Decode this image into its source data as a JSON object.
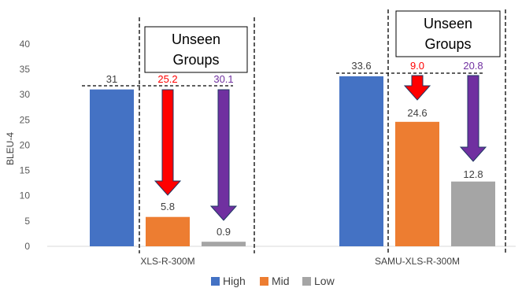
{
  "chart_data": {
    "type": "bar",
    "title": "",
    "xlabel": "",
    "ylabel": "BLEU-4",
    "ylim": [
      0,
      40
    ],
    "yticks": [
      0,
      5,
      10,
      15,
      20,
      25,
      30,
      35,
      40
    ],
    "grid": false,
    "legend_position": "bottom",
    "categories": [
      "XLS-R-300M",
      "SAMU-XLS-R-300M"
    ],
    "series": [
      {
        "name": "High",
        "color": "#4472C4",
        "values": [
          31,
          33.6
        ],
        "labels": [
          "31",
          "33.6"
        ]
      },
      {
        "name": "Mid",
        "color": "#ED7D31",
        "values": [
          5.8,
          24.6
        ],
        "labels": [
          "5.8",
          "24.6"
        ]
      },
      {
        "name": "Low",
        "color": "#A5A5A5",
        "values": [
          0.9,
          12.8
        ],
        "labels": [
          "0.9",
          "12.8"
        ]
      }
    ],
    "annotations": {
      "unseen_box_label": [
        "Unseen",
        "Groups"
      ],
      "drops": [
        {
          "category": 0,
          "series": "Mid",
          "label": "25.2",
          "color": "#FF0000"
        },
        {
          "category": 0,
          "series": "Low",
          "label": "30.1",
          "color": "#7030A0"
        },
        {
          "category": 1,
          "series": "Mid",
          "label": "9.0",
          "color": "#FF0000"
        },
        {
          "category": 1,
          "series": "Low",
          "label": "20.8",
          "color": "#7030A0"
        }
      ]
    }
  }
}
